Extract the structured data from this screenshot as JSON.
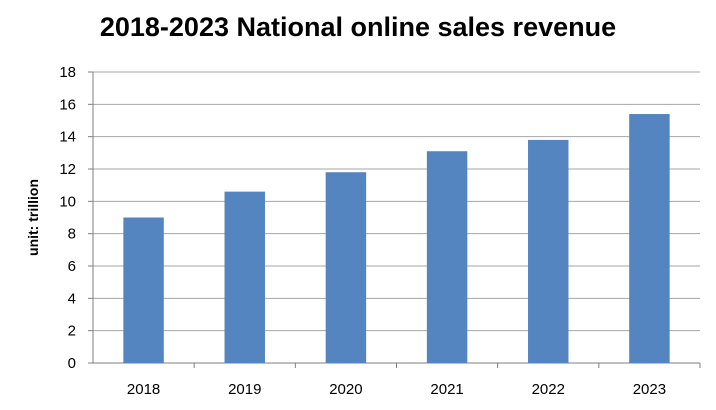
{
  "chart_data": {
    "type": "bar",
    "title": "2018-2023 National online sales  revenue",
    "xlabel": "",
    "ylabel": "unit: trillion",
    "categories": [
      "2018",
      "2019",
      "2020",
      "2021",
      "2022",
      "2023"
    ],
    "values": [
      9.0,
      10.6,
      11.8,
      13.1,
      13.8,
      15.4
    ],
    "ylim": [
      0,
      18
    ],
    "yticks": [
      0,
      2,
      4,
      6,
      8,
      10,
      12,
      14,
      16,
      18
    ],
    "grid": true,
    "legend": "none",
    "colors": {
      "bar": "#5585C1",
      "grid": "#A6A6A6",
      "axis": "#7F7F7F",
      "text": "#000000"
    }
  }
}
